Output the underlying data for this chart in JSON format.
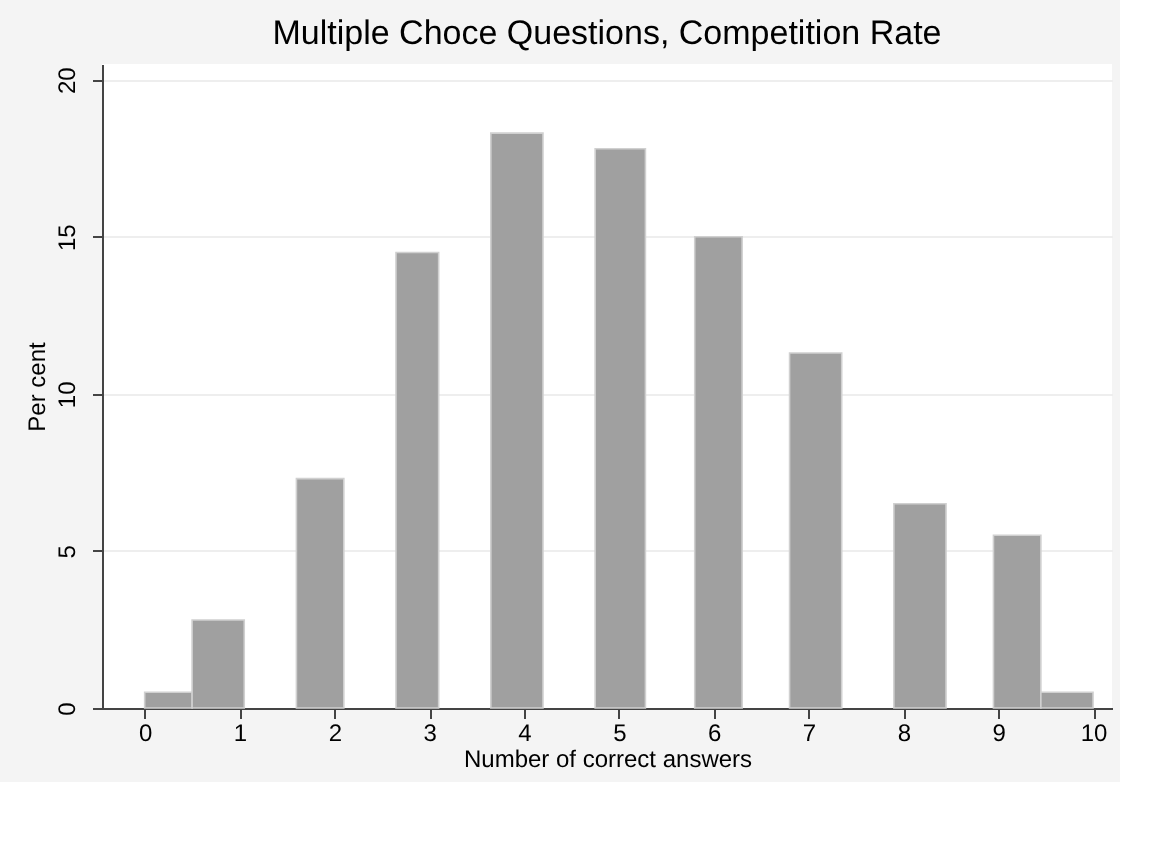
{
  "chart_data": {
    "type": "histogram",
    "title": "Multiple Choce Questions, Competition Rate",
    "xlabel": "Number of correct answers",
    "ylabel": "Per cent",
    "bins": [
      0,
      0.5,
      1.05,
      1.6,
      2.1,
      2.65,
      3.1,
      3.65,
      4.2,
      4.75,
      5.28,
      5.8,
      6.3,
      6.8,
      7.35,
      7.9,
      8.45,
      8.95,
      9.45,
      10
    ],
    "values": [
      0.5,
      2.8,
      null,
      7.3,
      null,
      14.5,
      null,
      18.3,
      null,
      17.8,
      null,
      15.0,
      null,
      11.3,
      null,
      6.5,
      null,
      5.5,
      0.5
    ],
    "color": "#a0a0a0",
    "xlim": [
      -0.45,
      10.2
    ],
    "xticks": [
      0,
      1,
      2,
      3,
      4,
      5,
      6,
      7,
      8,
      9,
      10
    ],
    "ylim": [
      0,
      20.5
    ],
    "yticks": [
      0,
      5,
      10,
      15,
      20
    ],
    "grid": "y"
  }
}
